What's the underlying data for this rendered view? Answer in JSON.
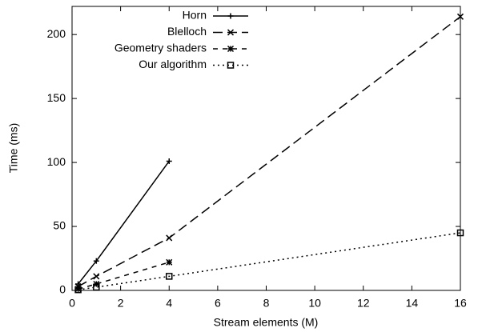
{
  "chart_data": {
    "type": "line",
    "x_label": "Stream elements (M)",
    "y_label": "Time (ms)",
    "x": [
      0.25,
      1,
      4,
      16
    ],
    "series": [
      {
        "name": "Horn",
        "color": "#000000",
        "dash": "none",
        "marker": "plus",
        "values": [
          5,
          23,
          101,
          null
        ]
      },
      {
        "name": "Blelloch",
        "color": "#000000",
        "dash": "12,6",
        "marker": "cross",
        "values": [
          3,
          11,
          41,
          214
        ]
      },
      {
        "name": "Geometry shaders",
        "color": "#000000",
        "dash": "6,6",
        "marker": "star",
        "values": [
          1,
          5,
          22,
          null
        ]
      },
      {
        "name": "Our algorithm",
        "color": "#000000",
        "dash": "2,4",
        "marker": "square",
        "values": [
          0.5,
          2.5,
          11,
          45
        ]
      }
    ],
    "xlim": [
      0,
      16
    ],
    "xticks": [
      0,
      2,
      4,
      6,
      8,
      10,
      12,
      14,
      16
    ],
    "ylim": [
      0,
      222
    ],
    "yticks": [
      0,
      50,
      100,
      150,
      200
    ],
    "legend": "top-left"
  }
}
